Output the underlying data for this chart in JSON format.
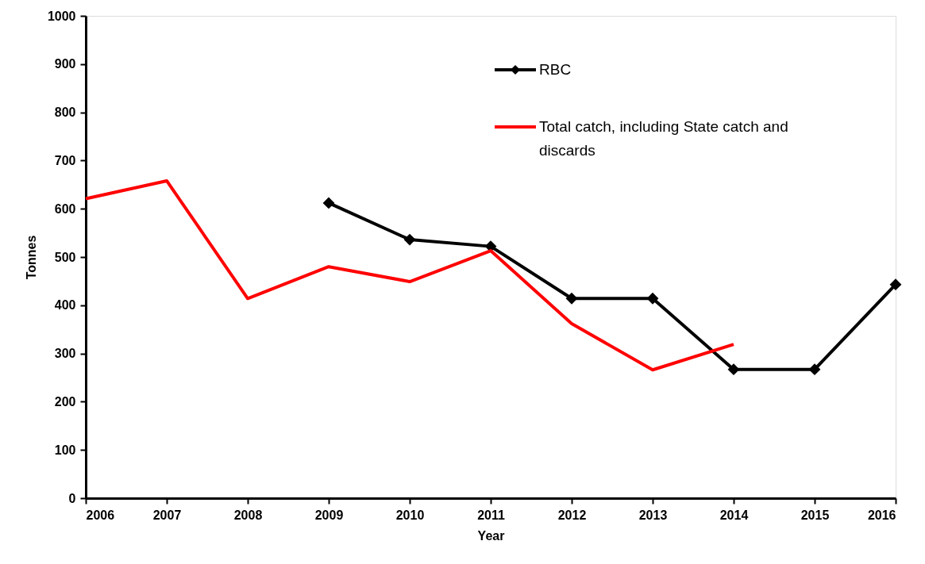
{
  "chart_data": {
    "type": "line",
    "xlabel": "Year",
    "ylabel": "Tonnes",
    "xlim": [
      2006,
      2016
    ],
    "xticks": [
      2006,
      2007,
      2008,
      2009,
      2010,
      2011,
      2012,
      2013,
      2014,
      2015,
      2016
    ],
    "ylim": [
      0,
      1000
    ],
    "yticks": [
      0,
      100,
      200,
      300,
      400,
      500,
      600,
      700,
      800,
      900,
      1000
    ],
    "grid": false,
    "legend": "top",
    "line_style": "solid",
    "series": [
      {
        "name": "RBC",
        "color": "#000000",
        "marker": "diamond",
        "x": [
          2009,
          2010,
          2011,
          2012,
          2013,
          2014,
          2015,
          2016
        ],
        "values": [
          612,
          536,
          522,
          414,
          414,
          267,
          267,
          443
        ]
      },
      {
        "name": "Total catch, including State catch and discards",
        "color": "#ff0000",
        "marker": "none",
        "x": [
          2006,
          2007,
          2008,
          2009,
          2010,
          2011,
          2012,
          2013,
          2014
        ],
        "values": [
          621,
          658,
          414,
          480,
          449,
          513,
          362,
          266,
          319
        ]
      }
    ]
  }
}
